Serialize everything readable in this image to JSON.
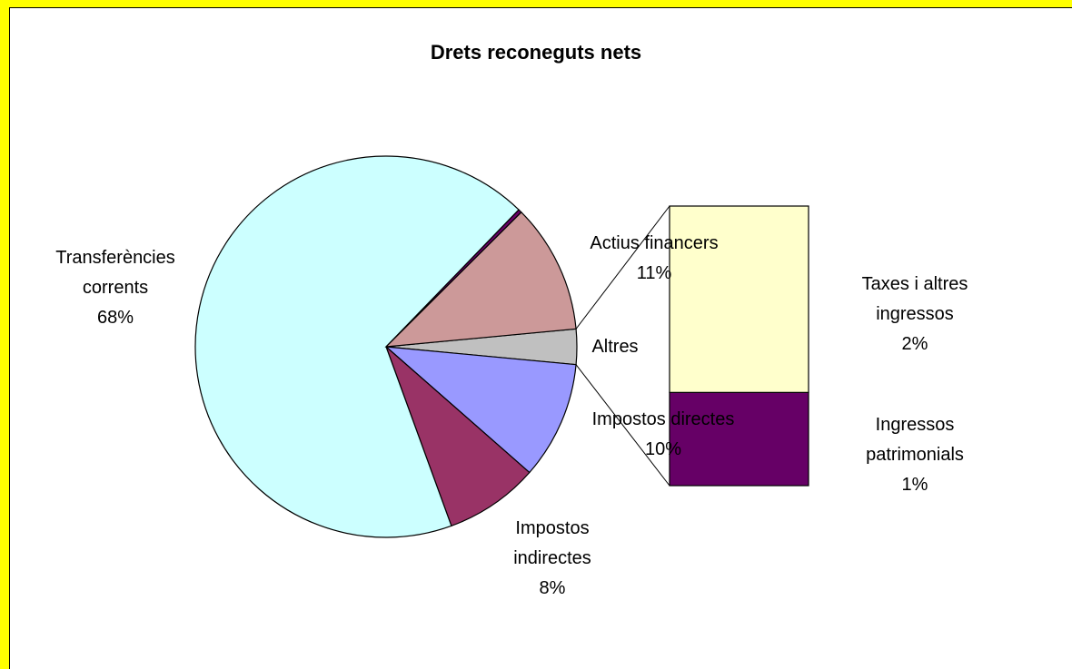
{
  "chart_data": {
    "type": "bar-of-pie",
    "title": "Drets reconeguts nets",
    "pie": {
      "categories": [
        "Impostos directes",
        "Impostos indirectes",
        "Transferències corrents",
        null,
        "Actius financers"
      ],
      "values": [
        10,
        8,
        68,
        0.3,
        11
      ],
      "value_labels": [
        "10%",
        "8%",
        "68%",
        null,
        "11%"
      ],
      "colors": [
        "#9999ff",
        "#993366",
        "#ccffff",
        "#660066",
        "#cc9999"
      ]
    },
    "other_label": "Altres",
    "other_color": "#c0c0c0",
    "bar": {
      "categories": [
        "Taxes i altres ingressos",
        "Ingressos patrimonials"
      ],
      "values": [
        2,
        1
      ],
      "value_labels": [
        "2%",
        "1%"
      ],
      "colors": [
        "#ffffcc",
        "#660066"
      ]
    }
  }
}
